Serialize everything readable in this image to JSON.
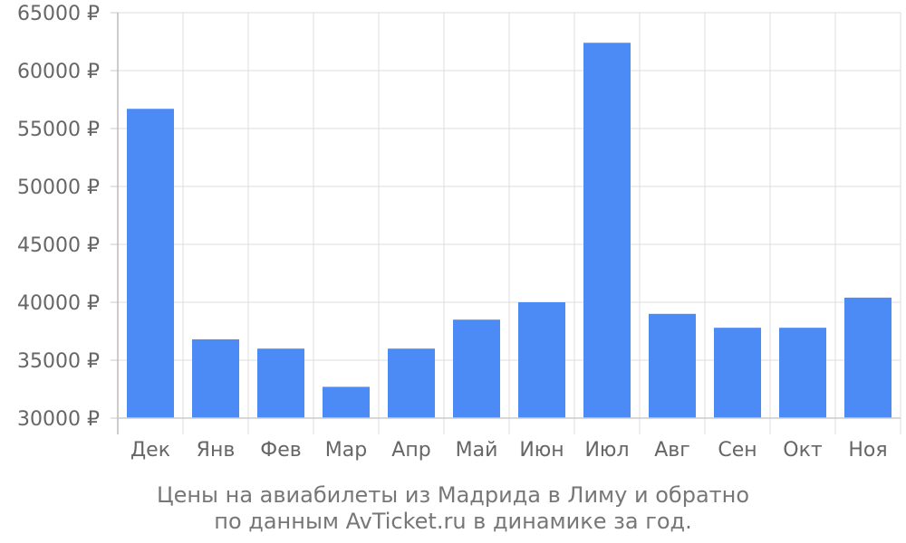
{
  "chart_data": {
    "type": "bar",
    "categories": [
      "Дек",
      "Янв",
      "Фев",
      "Мар",
      "Апр",
      "Май",
      "Июн",
      "Июл",
      "Авг",
      "Сен",
      "Окт",
      "Ноя"
    ],
    "values": [
      56700,
      36800,
      36000,
      32700,
      36000,
      38500,
      40000,
      62400,
      39000,
      37800,
      37800,
      40400
    ],
    "ylim": [
      30000,
      65000
    ],
    "yticks": [
      30000,
      35000,
      40000,
      45000,
      50000,
      55000,
      60000,
      65000
    ],
    "ytick_labels": [
      "30000 ₽",
      "35000 ₽",
      "40000 ₽",
      "45000 ₽",
      "50000 ₽",
      "55000 ₽",
      "60000 ₽",
      "65000 ₽"
    ],
    "grid": true,
    "bar_color": "#4c8bf5",
    "title": "",
    "xlabel": "",
    "ylabel": ""
  },
  "caption": {
    "line1": "Цены на авиабилеты из Мадрида в Лиму и обратно",
    "line2": "по данным AvTicket.ru в динамике за год."
  }
}
